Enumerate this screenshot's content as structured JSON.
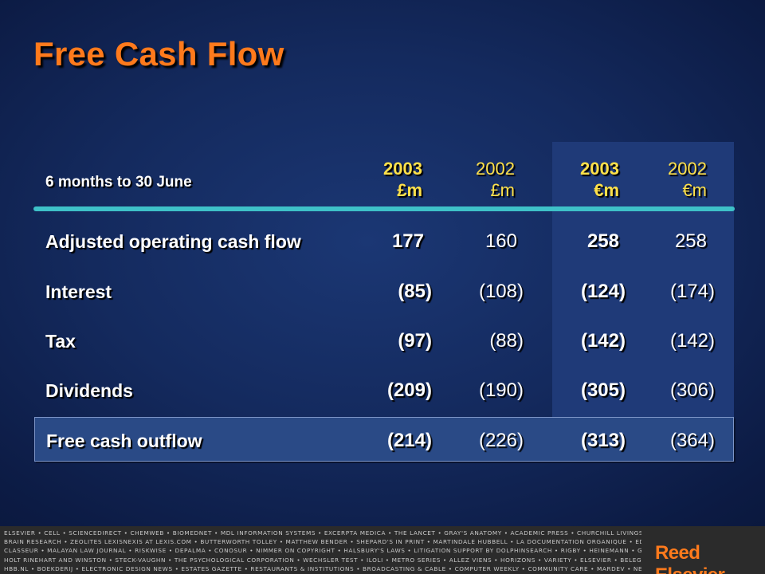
{
  "title": "Free Cash Flow",
  "table": {
    "period_label": "6 months to 30 June",
    "columns": [
      {
        "year": "2003",
        "unit": "£m",
        "bold": true
      },
      {
        "year": "2002",
        "unit": "£m",
        "bold": false
      },
      {
        "year": "2003",
        "unit": "€m",
        "bold": true
      },
      {
        "year": "2002",
        "unit": "€m",
        "bold": false
      }
    ],
    "rows": [
      {
        "label": "Adjusted operating cash flow",
        "values": [
          "177",
          "160",
          "258",
          "258"
        ]
      },
      {
        "label": "Interest",
        "values": [
          "(85)",
          "(108)",
          "(124)",
          "(174)"
        ]
      },
      {
        "label": "Tax",
        "values": [
          "(97)",
          "(88)",
          "(142)",
          "(142)"
        ]
      },
      {
        "label": "Dividends",
        "values": [
          "(209)",
          "(190)",
          "(305)",
          "(306)"
        ]
      }
    ],
    "total": {
      "label": "Free cash outflow",
      "values": [
        "(214)",
        "(226)",
        "(313)",
        "(364)"
      ]
    }
  },
  "footer": {
    "lines": [
      "ELSEVIER • CELL • SCIENCEDIRECT • CHEMWEB • BIOMEDNET • MDL INFORMATION SYSTEMS • EXCERPTA MEDICA • THE LANCET • GRAY'S ANATOMY • ACADEMIC PRESS • CHURCHILL LIVINGSTONE • MOSBY • WB SAUNDERS • MD CONSULT",
      "BRAIN RESEARCH • ZEOLITES LEXISNEXIS AT LEXIS.COM • BUTTERWORTH TOLLEY • MATTHEW BENDER • SHEPARD'S IN PRINT • MARTINDALE HUBBELL • LA DOCUMENTATION ORGANIQUE • EDITIONS DU JURIS",
      "CLASSEUR • MALAYAN LAW JOURNAL • RISKWISE • DEPALMA • CONOSUR • NIMMER ON COPYRIGHT • HALSBURY'S LAWS • LITIGATION SUPPORT BY DOLPHINSEARCH • RIGBY • HEINEMANN • GINN • GREENWOOD",
      "HOLT RINEHART AND WINSTON • STECK-VAUGHN • THE PSYCHOLOGICAL CORPORATION • WECHSLER TEST • ILOLI • METRO SERIES • ALLEZ VIENS • HORIZONS • VARIETY • ELSEVIER • BELEGGERS BELANGEN",
      "HBB.NL • BOEKDERIJ • ELECTRONIC DESIGN NEWS • ESTATES GAZETTE • RESTAURANTS & INSTITUTIONS • BROADCASTING & CABLE • COMPUTER WEEKLY • COMMUNITY CARE • MARDEV • NEW SCIENTIST • FLIGHT INTERNATIONAL"
    ],
    "logo": "Reed Elsevier"
  }
}
